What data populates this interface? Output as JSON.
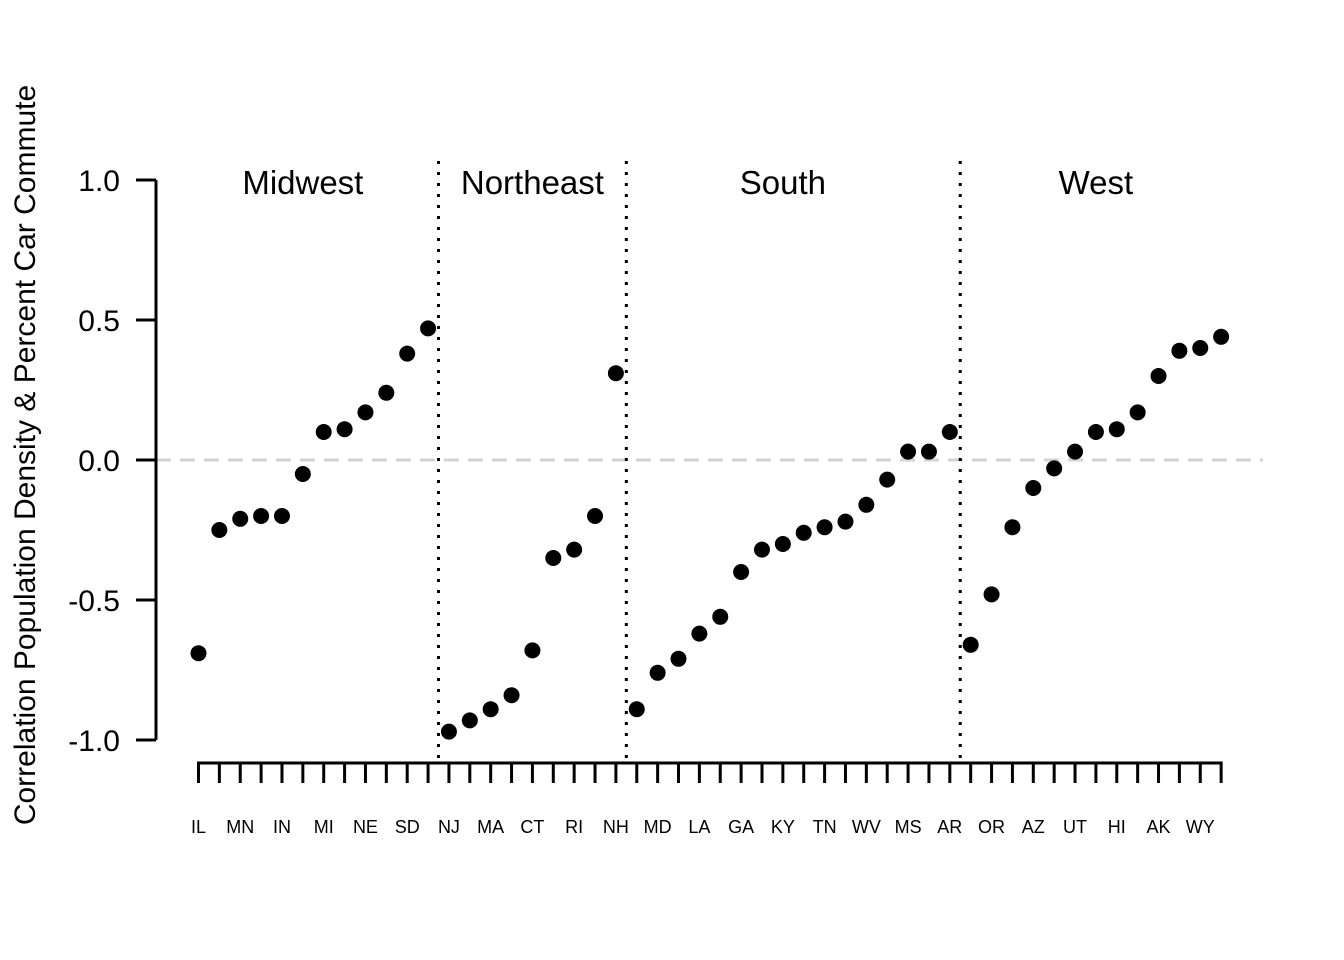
{
  "figure": {
    "background": "#ffffff",
    "point_color": "#000000",
    "axis_color": "#000000",
    "text_color": "#000000",
    "zero_line_color": "#d3d3d3"
  },
  "chart_data": {
    "type": "scatter",
    "title": "",
    "xlabel": "",
    "ylabel": "Correlation Population Density & Percent Car Commute",
    "ylim": [
      -1.0,
      1.0
    ],
    "y_ticks": [
      1.0,
      0.5,
      0.0,
      -0.5,
      -1.0
    ],
    "y_tick_labels": [
      "1.0",
      "0.5",
      "0.0",
      "-0.5",
      "-1.0"
    ],
    "zero_reference_line": 0.0,
    "grid": "off",
    "legend": "none",
    "x_axis_note": "50 state ticks, every other tick labeled",
    "regions": [
      {
        "name": "Midwest",
        "points": [
          {
            "label": "IL",
            "value": -0.69
          },
          {
            "label": "",
            "value": -0.25
          },
          {
            "label": "MN",
            "value": -0.21
          },
          {
            "label": "",
            "value": -0.2
          },
          {
            "label": "IN",
            "value": -0.2
          },
          {
            "label": "",
            "value": -0.05
          },
          {
            "label": "MI",
            "value": 0.1
          },
          {
            "label": "",
            "value": 0.11
          },
          {
            "label": "NE",
            "value": 0.17
          },
          {
            "label": "",
            "value": 0.24
          },
          {
            "label": "SD",
            "value": 0.38
          },
          {
            "label": "",
            "value": 0.47
          }
        ]
      },
      {
        "name": "Northeast",
        "points": [
          {
            "label": "NJ",
            "value": -0.97
          },
          {
            "label": "",
            "value": -0.93
          },
          {
            "label": "MA",
            "value": -0.89
          },
          {
            "label": "",
            "value": -0.84
          },
          {
            "label": "CT",
            "value": -0.68
          },
          {
            "label": "",
            "value": -0.35
          },
          {
            "label": "RI",
            "value": -0.32
          },
          {
            "label": "",
            "value": -0.2
          },
          {
            "label": "NH",
            "value": 0.31
          }
        ]
      },
      {
        "name": "South",
        "points": [
          {
            "label": "",
            "value": -0.89
          },
          {
            "label": "MD",
            "value": -0.76
          },
          {
            "label": "",
            "value": -0.71
          },
          {
            "label": "LA",
            "value": -0.62
          },
          {
            "label": "",
            "value": -0.56
          },
          {
            "label": "GA",
            "value": -0.4
          },
          {
            "label": "",
            "value": -0.32
          },
          {
            "label": "KY",
            "value": -0.3
          },
          {
            "label": "",
            "value": -0.26
          },
          {
            "label": "TN",
            "value": -0.24
          },
          {
            "label": "",
            "value": -0.22
          },
          {
            "label": "WV",
            "value": -0.16
          },
          {
            "label": "",
            "value": -0.07
          },
          {
            "label": "MS",
            "value": 0.03
          },
          {
            "label": "",
            "value": 0.03
          },
          {
            "label": "AR",
            "value": 0.1
          }
        ]
      },
      {
        "name": "West",
        "points": [
          {
            "label": "",
            "value": -0.66
          },
          {
            "label": "OR",
            "value": -0.48
          },
          {
            "label": "",
            "value": -0.24
          },
          {
            "label": "AZ",
            "value": -0.1
          },
          {
            "label": "",
            "value": -0.03
          },
          {
            "label": "UT",
            "value": 0.03
          },
          {
            "label": "",
            "value": 0.1
          },
          {
            "label": "HI",
            "value": 0.11
          },
          {
            "label": "",
            "value": 0.17
          },
          {
            "label": "AK",
            "value": 0.3
          },
          {
            "label": "",
            "value": 0.39
          },
          {
            "label": "WY",
            "value": 0.4
          },
          {
            "label": "",
            "value": 0.44
          }
        ]
      }
    ]
  }
}
